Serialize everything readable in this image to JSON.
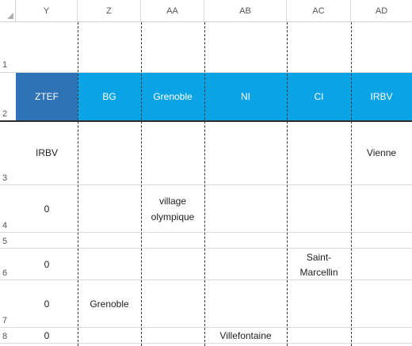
{
  "columns": [
    "Y",
    "Z",
    "AA",
    "AB",
    "AC",
    "AD"
  ],
  "rows": [
    "1",
    "2",
    "3",
    "4",
    "5",
    "6",
    "7",
    "8"
  ],
  "header_band": {
    "ztef": "ZTEF",
    "bg": "BG",
    "grenoble": "Grenoble",
    "ni": "NI",
    "ci": "CI",
    "irbv": "IRBV"
  },
  "cells": {
    "y3": "IRBV",
    "ad3": "Vienne",
    "y4": "0",
    "aa4_line1": "village",
    "aa4_line2": "olympique",
    "y6": "0",
    "ac6_line1": "Saint-",
    "ac6_line2": "Marcellin",
    "y7": "0",
    "z7": "Grenoble",
    "y8": "0",
    "ab8": "Villefontaine"
  },
  "colors": {
    "band_blue": "#0aa4e6",
    "band_first": "#2e73b5"
  }
}
